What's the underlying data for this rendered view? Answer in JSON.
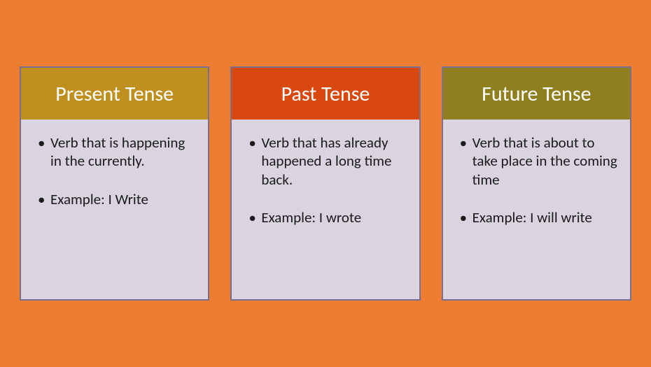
{
  "background_color": "#ed7d31",
  "card_body_bg": "#d9d4e0",
  "card_body_text_color": "#1a1a1a",
  "card_body_fontsize": 21,
  "header_fontsize": 30,
  "header_text_color": "#ffffff",
  "card_border_color": "#7a6f8f",
  "cards": [
    {
      "title": "Present Tense",
      "header_bg": "#bf8f1f",
      "description": "Verb that is happening in the currently.",
      "example": "Example: I Write"
    },
    {
      "title": "Past Tense",
      "header_bg": "#d9480f",
      "description": "Verb that has already happened a long time back.",
      "example": "Example: I wrote"
    },
    {
      "title": "Future Tense",
      "header_bg": "#8f7f1f",
      "description": "Verb that is about to take place in the coming time",
      "example": "Example: I will write"
    }
  ]
}
